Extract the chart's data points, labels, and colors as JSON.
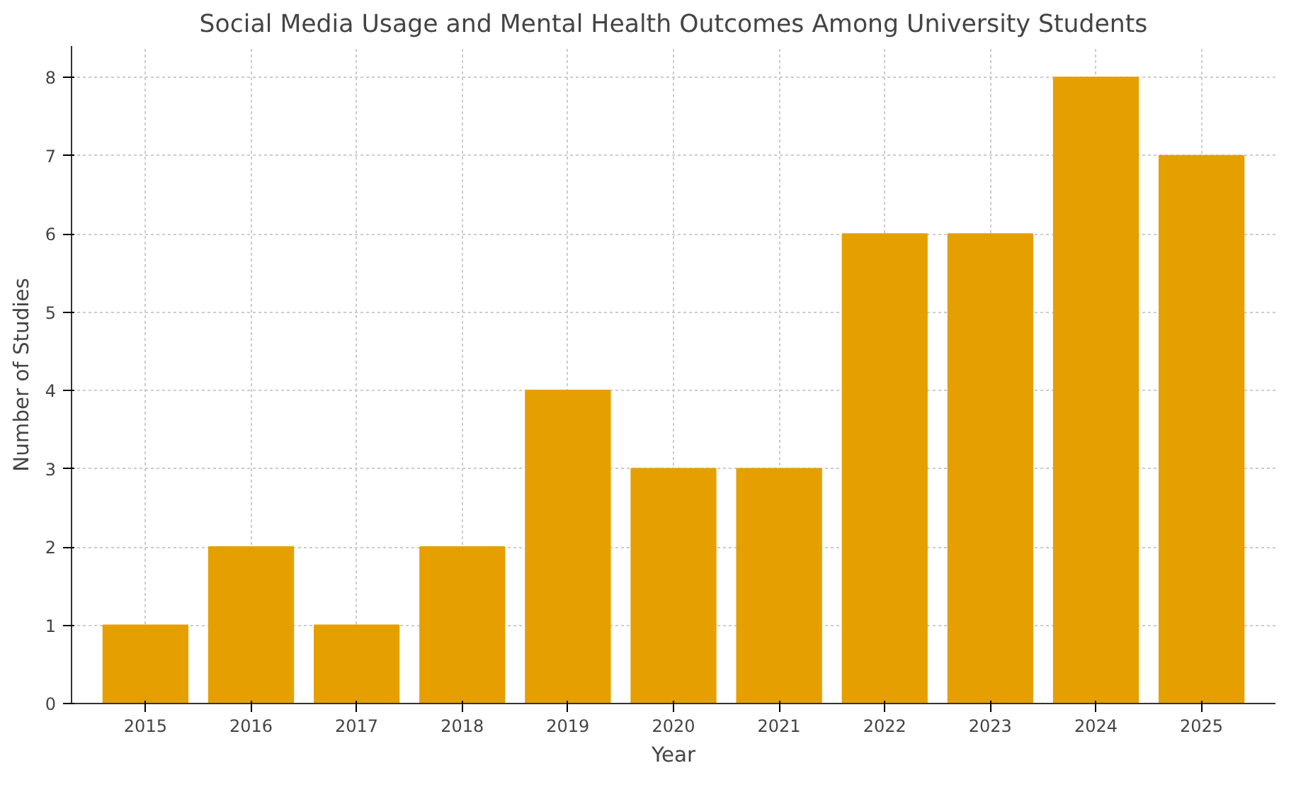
{
  "chart_data": {
    "type": "bar",
    "title": "Social Media Usage and Mental Health Outcomes Among University Students",
    "xlabel": "Year",
    "ylabel": "Number of Studies",
    "x": [
      2015,
      2016,
      2017,
      2018,
      2019,
      2020,
      2021,
      2022,
      2023,
      2024,
      2025
    ],
    "values": [
      1,
      2,
      1,
      2,
      4,
      3,
      3,
      6,
      6,
      8,
      7
    ],
    "color": "#e5a000",
    "xlim": [
      2014.3,
      2025.7
    ],
    "xticks": [
      2015,
      2016,
      2017,
      2018,
      2019,
      2020,
      2021,
      2022,
      2023,
      2024,
      2025
    ],
    "ylim": [
      0,
      8.4
    ],
    "yticks": [
      0,
      1,
      2,
      3,
      4,
      5,
      6,
      7,
      8
    ],
    "grid": true
  }
}
